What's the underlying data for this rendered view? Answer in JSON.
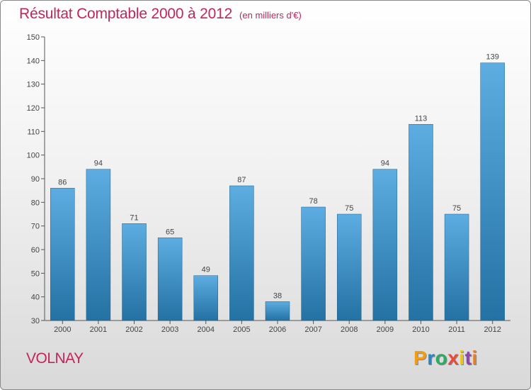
{
  "title": "Résultat Comptable 2000 à 2012",
  "subtitle": "(en milliers d'€)",
  "commune": "VOLNAY",
  "logo": {
    "letters": [
      "P",
      "r",
      "o",
      "x",
      "i",
      "t",
      "i"
    ],
    "colors": [
      "#f39c12",
      "#2e86c1",
      "#27ae60",
      "#e74c3c",
      "#f1c40f",
      "#8e44ad",
      "#e67e22"
    ]
  },
  "colors": {
    "title": "#c0265a",
    "bar_top": "#5dade2",
    "bar_bottom": "#2471a3",
    "axis": "#555555",
    "grid": "#d0d0d0"
  },
  "chart_data": {
    "type": "bar",
    "title": "Résultat Comptable 2000 à 2012",
    "subtitle": "(en milliers d'€)",
    "xlabel": "",
    "ylabel": "",
    "categories": [
      "2000",
      "2001",
      "2002",
      "2003",
      "2004",
      "2005",
      "2006",
      "2007",
      "2008",
      "2009",
      "2010",
      "2011",
      "2012"
    ],
    "values": [
      86,
      94,
      71,
      65,
      49,
      87,
      38,
      78,
      75,
      94,
      113,
      75,
      139
    ],
    "ylim": [
      30,
      150
    ],
    "yticks": [
      30,
      40,
      50,
      60,
      70,
      80,
      90,
      100,
      110,
      120,
      130,
      140,
      150
    ],
    "grid": false
  }
}
